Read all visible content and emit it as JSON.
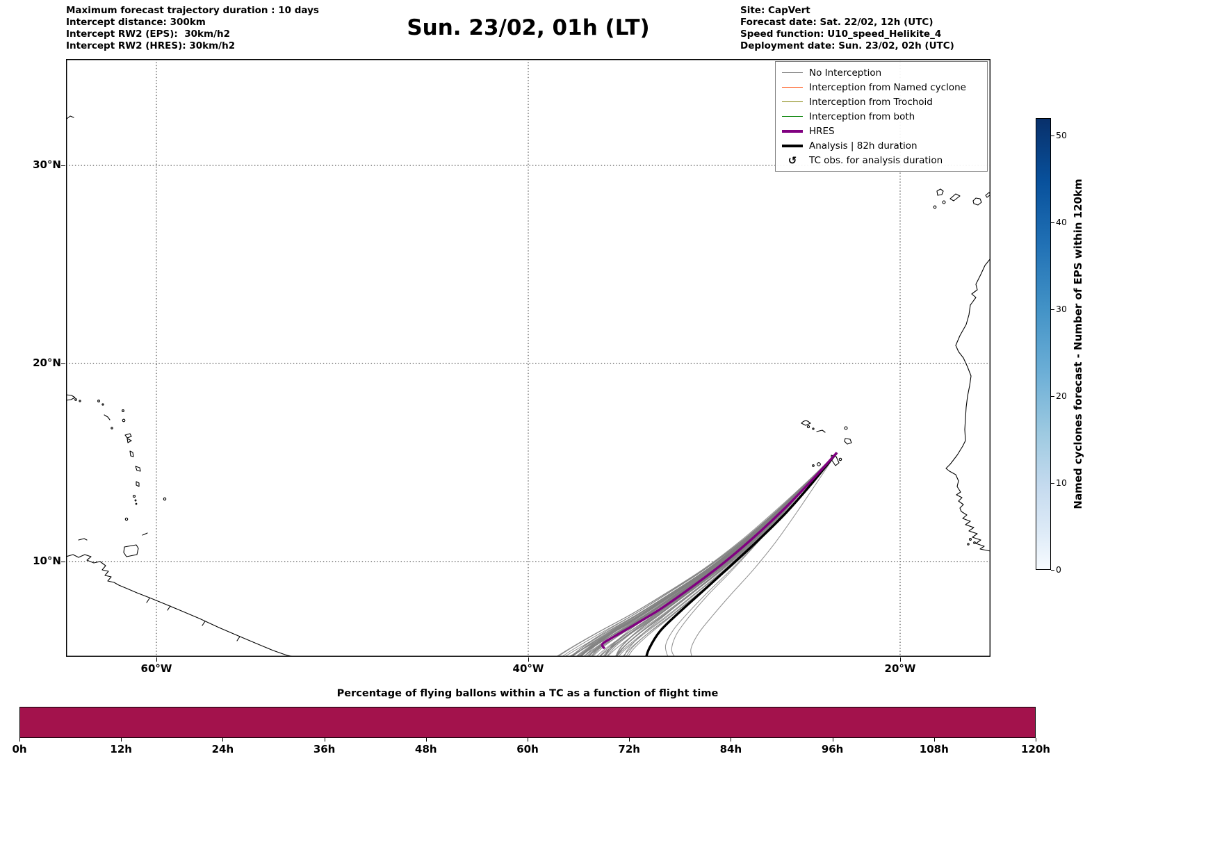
{
  "header": {
    "left_lines": [
      "Maximum forecast trajectory duration : 10 days",
      "Intercept distance: 300km",
      "Intercept RW2 (EPS):  30km/h2",
      "Intercept RW2 (HRES): 30km/h2"
    ],
    "right_lines": [
      "Site: CapVert",
      "Forecast date: Sat. 22/02, 12h (UTC)",
      "Speed function: U10_speed_Helikite_4",
      "Deployment date: Sun. 23/02, 02h (UTC)"
    ]
  },
  "chart_data": [
    {
      "type": "line",
      "subtype": "geo_trajectory_map",
      "title": "Sun. 23/02, 01h (LT)",
      "site": "CapVert",
      "lon_range": [
        -64.9,
        -15.1
      ],
      "lat_range": [
        5.2,
        35.4
      ],
      "lon_ticks": {
        "values": [
          -60,
          -40,
          -20
        ],
        "labels": [
          "60°W",
          "40°W",
          "20°W"
        ]
      },
      "lat_ticks": {
        "values": [
          30,
          20,
          10
        ],
        "labels": [
          "30°N",
          "20°N",
          "10°N"
        ]
      },
      "grid": true,
      "legend_position": "upper right",
      "legend_items": [
        {
          "label": "No Interception",
          "type": "line",
          "color": "#7f7f7f",
          "width": 1.5
        },
        {
          "label": "Interception from Named cyclone",
          "type": "line",
          "color": "#ff4500",
          "width": 1.5
        },
        {
          "label": "Interception from Trochoid",
          "type": "line",
          "color": "#808000",
          "width": 1.5
        },
        {
          "label": "Interception from both",
          "type": "line",
          "color": "#008000",
          "width": 1.5
        },
        {
          "label": "HRES",
          "type": "line",
          "color": "#800080",
          "width": 4
        },
        {
          "label": "Analysis | 82h duration",
          "type": "line",
          "color": "#000000",
          "width": 4
        },
        {
          "label": "TC obs. for analysis duration",
          "type": "marker",
          "glyph": "↺",
          "color": "#000000"
        }
      ],
      "deployment_site_lonlat": [
        -23.4,
        15.5
      ],
      "series": [
        {
          "name": "No Interception",
          "color": "#7f7f7f",
          "style": "thin",
          "count": 55,
          "mean_path_lonlat": [
            [
              -23.4,
              15.5
            ],
            [
              -24.9,
              14.0
            ],
            [
              -26.5,
              12.5
            ],
            [
              -28.2,
              11.0
            ],
            [
              -30.0,
              9.6
            ],
            [
              -31.8,
              8.4
            ],
            [
              -33.5,
              7.3
            ],
            [
              -35.0,
              6.4
            ],
            [
              -36.2,
              5.6
            ],
            [
              -36.9,
              5.0
            ]
          ],
          "end_lon_spread_deg": [
            -1.9,
            7.4
          ]
        },
        {
          "name": "HRES",
          "color": "#800080",
          "style": "thick",
          "path_lonlat": [
            [
              -23.4,
              15.5
            ],
            [
              -24.8,
              14.05
            ],
            [
              -26.3,
              12.6
            ],
            [
              -27.9,
              11.2
            ],
            [
              -29.6,
              9.85
            ],
            [
              -31.3,
              8.65
            ],
            [
              -32.9,
              7.6
            ],
            [
              -34.3,
              6.8
            ],
            [
              -35.4,
              6.2
            ],
            [
              -36.0,
              5.85
            ],
            [
              -35.9,
              5.6
            ]
          ]
        },
        {
          "name": "Analysis | 82h duration",
          "color": "#000000",
          "style": "thick",
          "path_lonlat": [
            [
              -23.4,
              15.5
            ],
            [
              -24.7,
              14.0
            ],
            [
              -26.1,
              12.5
            ],
            [
              -27.6,
              11.1
            ],
            [
              -29.1,
              9.8
            ],
            [
              -30.5,
              8.6
            ],
            [
              -31.8,
              7.5
            ],
            [
              -32.9,
              6.5
            ],
            [
              -33.5,
              5.6
            ],
            [
              -33.7,
              5.0
            ]
          ]
        }
      ]
    },
    {
      "type": "colorbar",
      "label": "Named cyclones forecast - Number of EPS within 120km",
      "colormap": "Blues",
      "value_range": [
        0,
        52
      ],
      "ticks": [
        0,
        10,
        20,
        30,
        40,
        50
      ]
    },
    {
      "type": "bar",
      "title": "Percentage of flying ballons within a TC as a function of flight time",
      "categories": [
        "0h",
        "12h",
        "24h",
        "36h",
        "48h",
        "60h",
        "72h",
        "84h",
        "96h",
        "108h",
        "120h"
      ],
      "bar_color": "#a3124c",
      "note": "solid filled band spanning the full 0h-120h flight-time range"
    }
  ]
}
